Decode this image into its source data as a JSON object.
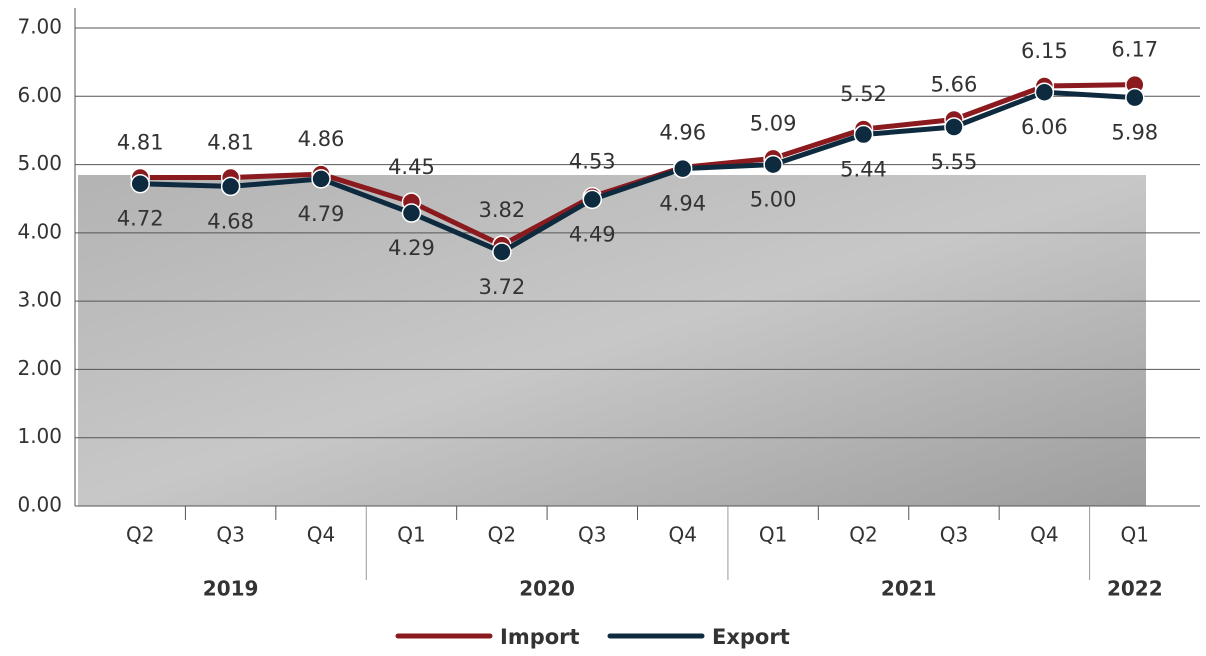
{
  "chart_data": {
    "type": "line",
    "categories": [
      "Q2",
      "Q3",
      "Q4",
      "Q1",
      "Q2",
      "Q3",
      "Q4",
      "Q1",
      "Q2",
      "Q3",
      "Q4",
      "Q1"
    ],
    "category_groups": [
      "2019",
      "2019",
      "2019",
      "2020",
      "2020",
      "2020",
      "2020",
      "2021",
      "2021",
      "2021",
      "2021",
      "2022"
    ],
    "series": [
      {
        "name": "Import",
        "color": "#8b1a1e",
        "values": [
          4.81,
          4.81,
          4.86,
          4.45,
          3.82,
          4.53,
          4.96,
          5.09,
          5.52,
          5.66,
          6.15,
          6.17
        ],
        "value_labels": [
          "4.81",
          "4.81",
          "4.86",
          "4.45",
          "3.82",
          "4.53",
          "4.96",
          "5.09",
          "5.52",
          "5.66",
          "6.15",
          "6.17"
        ]
      },
      {
        "name": "Export",
        "color": "#0d2a3f",
        "values": [
          4.72,
          4.68,
          4.79,
          4.29,
          3.72,
          4.49,
          4.94,
          5.0,
          5.44,
          5.55,
          6.06,
          5.98
        ],
        "value_labels": [
          "4.72",
          "4.68",
          "4.79",
          "4.29",
          "3.72",
          "4.49",
          "4.94",
          "5.00",
          "5.44",
          "5.55",
          "6.06",
          "5.98"
        ]
      }
    ],
    "ylim": [
      0,
      7
    ],
    "yticks": [
      {
        "value": 0,
        "label": "0.00"
      },
      {
        "value": 1,
        "label": "1.00"
      },
      {
        "value": 2,
        "label": "2.00"
      },
      {
        "value": 3,
        "label": "3.00"
      },
      {
        "value": 4,
        "label": "4.00"
      },
      {
        "value": 5,
        "label": "5.00"
      },
      {
        "value": 6,
        "label": "6.00"
      },
      {
        "value": 7,
        "label": "7.00"
      }
    ],
    "grid": true
  }
}
